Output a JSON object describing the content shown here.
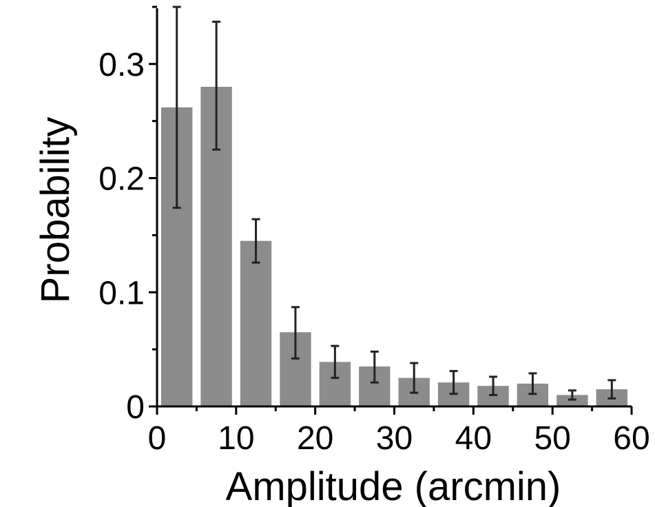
{
  "chart_data": {
    "type": "bar",
    "title": "",
    "xlabel": "Amplitude (arcmin)",
    "ylabel": "Probability",
    "xlim": [
      0,
      60
    ],
    "ylim": [
      0,
      0.35
    ],
    "xticks": [
      0,
      10,
      20,
      30,
      40,
      50,
      60
    ],
    "xtick_labels": [
      "0",
      "10",
      "20",
      "30",
      "40",
      "50",
      "60"
    ],
    "yticks": [
      0,
      0.1,
      0.2,
      0.3
    ],
    "ytick_labels": [
      "0",
      "0.1",
      "0.2",
      "0.3"
    ],
    "bin_width": 5,
    "x": [
      2.5,
      7.5,
      12.5,
      17.5,
      22.5,
      27.5,
      32.5,
      37.5,
      42.5,
      47.5,
      52.5,
      57.5
    ],
    "values": [
      0.262,
      0.28,
      0.145,
      0.065,
      0.039,
      0.035,
      0.025,
      0.021,
      0.018,
      0.02,
      0.01,
      0.015
    ],
    "error_low": [
      0.174,
      0.225,
      0.126,
      0.042,
      0.025,
      0.021,
      0.012,
      0.011,
      0.01,
      0.011,
      0.006,
      0.007
    ],
    "error_high": [
      0.35,
      0.337,
      0.164,
      0.087,
      0.053,
      0.048,
      0.038,
      0.031,
      0.026,
      0.029,
      0.014,
      0.023
    ],
    "grid": false,
    "colors": {
      "bar": "#8c8c8c",
      "error_bar": "#222222",
      "axis": "#000000"
    }
  }
}
